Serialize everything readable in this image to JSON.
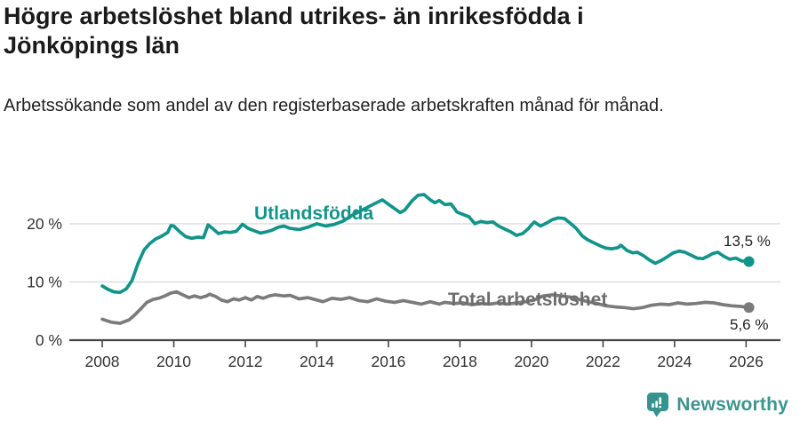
{
  "chart_data": {
    "type": "line",
    "title": "Högre arbetslöshet bland utrikes- än inrikesfödda i Jönköpings län",
    "subtitle": "Arbetssökande som andel av den registerbaserade arbetskraften månad för månad.",
    "xlabel": "",
    "ylabel": "",
    "xlim": [
      2007.08,
      2026.96
    ],
    "ylim": [
      0,
      27
    ],
    "grid": true,
    "legend_position": "inline-labels",
    "colors": {
      "grid": "#dcdcdc",
      "axis": "#444444",
      "tick_text": "#333333",
      "background": "#ffffff"
    },
    "xticks": [
      {
        "value": 2008,
        "label": "2008"
      },
      {
        "value": 2010,
        "label": "2010"
      },
      {
        "value": 2012,
        "label": "2012"
      },
      {
        "value": 2014,
        "label": "2014"
      },
      {
        "value": 2016,
        "label": "2016"
      },
      {
        "value": 2018,
        "label": "2018"
      },
      {
        "value": 2020,
        "label": "2020"
      },
      {
        "value": 2022,
        "label": "2022"
      },
      {
        "value": 2024,
        "label": "2024"
      },
      {
        "value": 2026,
        "label": "2026"
      }
    ],
    "yticks": [
      {
        "value": 0,
        "label": "0 %"
      },
      {
        "value": 10,
        "label": "10 %"
      },
      {
        "value": 20,
        "label": "20 %"
      }
    ],
    "series": [
      {
        "name": "Utlandsfödda",
        "color": "#12948a",
        "end_label": "13,5 %",
        "end_value": 13.5,
        "points": [
          [
            2008.0,
            9.3
          ],
          [
            2008.17,
            8.7
          ],
          [
            2008.33,
            8.3
          ],
          [
            2008.5,
            8.2
          ],
          [
            2008.67,
            8.8
          ],
          [
            2008.83,
            10.2
          ],
          [
            2009.0,
            13.2
          ],
          [
            2009.17,
            15.5
          ],
          [
            2009.33,
            16.6
          ],
          [
            2009.5,
            17.4
          ],
          [
            2009.67,
            17.9
          ],
          [
            2009.83,
            18.5
          ],
          [
            2009.92,
            19.7
          ],
          [
            2010.0,
            19.6
          ],
          [
            2010.17,
            18.6
          ],
          [
            2010.33,
            17.8
          ],
          [
            2010.5,
            17.5
          ],
          [
            2010.67,
            17.7
          ],
          [
            2010.83,
            17.6
          ],
          [
            2010.96,
            19.8
          ],
          [
            2011.08,
            19.2
          ],
          [
            2011.25,
            18.3
          ],
          [
            2011.42,
            18.6
          ],
          [
            2011.58,
            18.5
          ],
          [
            2011.75,
            18.7
          ],
          [
            2011.92,
            19.9
          ],
          [
            2012.08,
            19.2
          ],
          [
            2012.25,
            18.8
          ],
          [
            2012.42,
            18.4
          ],
          [
            2012.58,
            18.6
          ],
          [
            2012.75,
            18.9
          ],
          [
            2012.92,
            19.4
          ],
          [
            2013.08,
            19.6
          ],
          [
            2013.25,
            19.2
          ],
          [
            2013.5,
            19.0
          ],
          [
            2013.75,
            19.4
          ],
          [
            2014.0,
            20.0
          ],
          [
            2014.25,
            19.6
          ],
          [
            2014.5,
            19.9
          ],
          [
            2014.75,
            20.5
          ],
          [
            2015.0,
            21.5
          ],
          [
            2015.25,
            22.3
          ],
          [
            2015.5,
            23.1
          ],
          [
            2015.83,
            24.1
          ],
          [
            2016.08,
            23.0
          ],
          [
            2016.33,
            21.9
          ],
          [
            2016.45,
            22.3
          ],
          [
            2016.67,
            24.0
          ],
          [
            2016.83,
            24.9
          ],
          [
            2017.0,
            25.0
          ],
          [
            2017.17,
            24.1
          ],
          [
            2017.3,
            23.6
          ],
          [
            2017.42,
            24.0
          ],
          [
            2017.58,
            23.3
          ],
          [
            2017.75,
            23.4
          ],
          [
            2017.92,
            22.0
          ],
          [
            2018.08,
            21.6
          ],
          [
            2018.25,
            21.2
          ],
          [
            2018.42,
            20.0
          ],
          [
            2018.58,
            20.4
          ],
          [
            2018.75,
            20.2
          ],
          [
            2018.92,
            20.3
          ],
          [
            2019.08,
            19.6
          ],
          [
            2019.25,
            19.1
          ],
          [
            2019.42,
            18.6
          ],
          [
            2019.58,
            18.0
          ],
          [
            2019.75,
            18.3
          ],
          [
            2019.92,
            19.2
          ],
          [
            2020.0,
            19.8
          ],
          [
            2020.08,
            20.3
          ],
          [
            2020.25,
            19.6
          ],
          [
            2020.42,
            20.1
          ],
          [
            2020.58,
            20.7
          ],
          [
            2020.75,
            21.0
          ],
          [
            2020.92,
            20.9
          ],
          [
            2021.08,
            20.1
          ],
          [
            2021.25,
            19.2
          ],
          [
            2021.42,
            17.9
          ],
          [
            2021.58,
            17.2
          ],
          [
            2021.75,
            16.7
          ],
          [
            2021.92,
            16.2
          ],
          [
            2022.08,
            15.8
          ],
          [
            2022.25,
            15.7
          ],
          [
            2022.42,
            15.9
          ],
          [
            2022.5,
            16.3
          ],
          [
            2022.67,
            15.4
          ],
          [
            2022.83,
            15.0
          ],
          [
            2022.96,
            15.1
          ],
          [
            2023.13,
            14.5
          ],
          [
            2023.29,
            13.8
          ],
          [
            2023.46,
            13.2
          ],
          [
            2023.63,
            13.7
          ],
          [
            2023.79,
            14.3
          ],
          [
            2023.96,
            15.0
          ],
          [
            2024.13,
            15.3
          ],
          [
            2024.29,
            15.1
          ],
          [
            2024.46,
            14.6
          ],
          [
            2024.63,
            14.1
          ],
          [
            2024.79,
            14.0
          ],
          [
            2024.96,
            14.5
          ],
          [
            2025.08,
            14.9
          ],
          [
            2025.21,
            15.1
          ],
          [
            2025.38,
            14.4
          ],
          [
            2025.54,
            13.9
          ],
          [
            2025.71,
            14.1
          ],
          [
            2025.88,
            13.6
          ],
          [
            2026.08,
            13.5
          ]
        ]
      },
      {
        "name": "Total arbetslöshet",
        "color": "#7b7b7b",
        "end_label": "5,6 %",
        "end_value": 5.6,
        "points": [
          [
            2008.0,
            3.6
          ],
          [
            2008.25,
            3.1
          ],
          [
            2008.5,
            2.9
          ],
          [
            2008.75,
            3.5
          ],
          [
            2008.92,
            4.4
          ],
          [
            2009.08,
            5.4
          ],
          [
            2009.25,
            6.5
          ],
          [
            2009.42,
            7.0
          ],
          [
            2009.58,
            7.2
          ],
          [
            2009.75,
            7.6
          ],
          [
            2009.92,
            8.1
          ],
          [
            2010.08,
            8.3
          ],
          [
            2010.25,
            7.8
          ],
          [
            2010.42,
            7.3
          ],
          [
            2010.58,
            7.6
          ],
          [
            2010.75,
            7.3
          ],
          [
            2010.92,
            7.6
          ],
          [
            2011.0,
            7.9
          ],
          [
            2011.17,
            7.5
          ],
          [
            2011.33,
            6.9
          ],
          [
            2011.5,
            6.6
          ],
          [
            2011.67,
            7.1
          ],
          [
            2011.83,
            6.9
          ],
          [
            2012.0,
            7.3
          ],
          [
            2012.17,
            6.9
          ],
          [
            2012.33,
            7.5
          ],
          [
            2012.5,
            7.2
          ],
          [
            2012.67,
            7.6
          ],
          [
            2012.83,
            7.8
          ],
          [
            2013.08,
            7.6
          ],
          [
            2013.25,
            7.7
          ],
          [
            2013.5,
            7.1
          ],
          [
            2013.75,
            7.3
          ],
          [
            2014.0,
            6.9
          ],
          [
            2014.17,
            6.6
          ],
          [
            2014.42,
            7.2
          ],
          [
            2014.67,
            7.0
          ],
          [
            2014.92,
            7.3
          ],
          [
            2015.17,
            6.8
          ],
          [
            2015.42,
            6.6
          ],
          [
            2015.67,
            7.1
          ],
          [
            2015.92,
            6.7
          ],
          [
            2016.17,
            6.5
          ],
          [
            2016.42,
            6.8
          ],
          [
            2016.67,
            6.5
          ],
          [
            2016.92,
            6.2
          ],
          [
            2017.17,
            6.6
          ],
          [
            2017.42,
            6.2
          ],
          [
            2017.58,
            6.5
          ],
          [
            2017.83,
            6.3
          ],
          [
            2018.08,
            6.4
          ],
          [
            2018.33,
            6.1
          ],
          [
            2018.58,
            6.3
          ],
          [
            2018.83,
            6.2
          ],
          [
            2019.08,
            6.4
          ],
          [
            2019.33,
            6.2
          ],
          [
            2019.58,
            6.4
          ],
          [
            2019.83,
            6.6
          ],
          [
            2020.08,
            6.9
          ],
          [
            2020.33,
            7.6
          ],
          [
            2020.58,
            7.8
          ],
          [
            2020.83,
            7.6
          ],
          [
            2021.08,
            7.4
          ],
          [
            2021.33,
            7.0
          ],
          [
            2021.58,
            6.6
          ],
          [
            2021.83,
            6.3
          ],
          [
            2022.08,
            5.9
          ],
          [
            2022.35,
            5.7
          ],
          [
            2022.6,
            5.6
          ],
          [
            2022.85,
            5.4
          ],
          [
            2023.1,
            5.6
          ],
          [
            2023.35,
            6.0
          ],
          [
            2023.6,
            6.2
          ],
          [
            2023.85,
            6.1
          ],
          [
            2024.1,
            6.4
          ],
          [
            2024.35,
            6.2
          ],
          [
            2024.6,
            6.3
          ],
          [
            2024.85,
            6.5
          ],
          [
            2025.1,
            6.4
          ],
          [
            2025.35,
            6.1
          ],
          [
            2025.6,
            5.9
          ],
          [
            2025.85,
            5.8
          ],
          [
            2026.08,
            5.6
          ]
        ]
      }
    ]
  },
  "footer": {
    "brand": "Newsworthy",
    "brand_color": "#3f948f",
    "logo_icon": "bar-chart-speech-bubble"
  }
}
